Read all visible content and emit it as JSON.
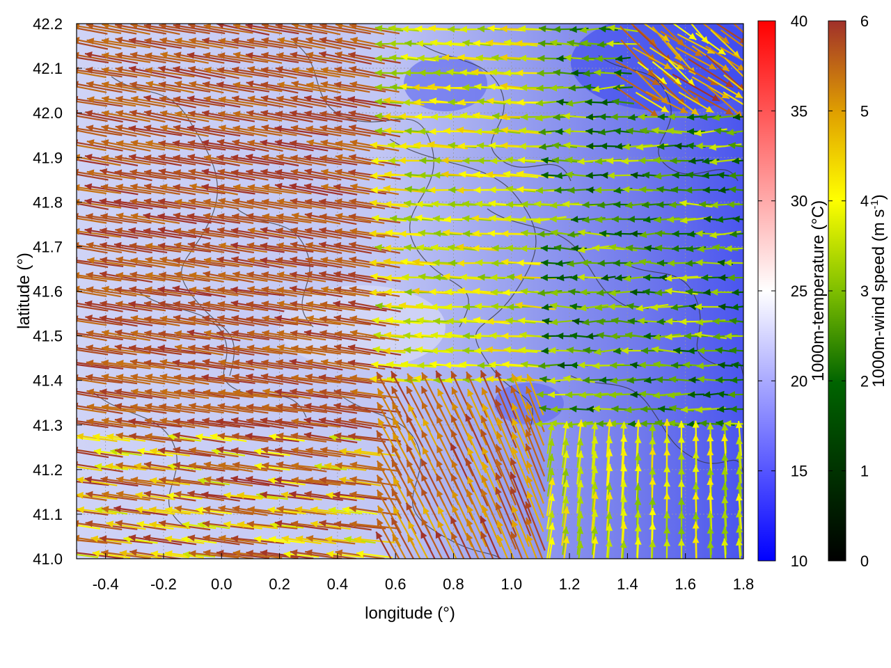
{
  "chart_data": {
    "type": "vector-field",
    "xlabel": "longitude (°)",
    "ylabel": "latitude (°)",
    "xlim": [
      -0.5,
      1.8
    ],
    "ylim": [
      41.0,
      42.2
    ],
    "xticks": [
      "-0.4",
      "-0.2",
      "0.0",
      "0.2",
      "0.4",
      "0.6",
      "0.8",
      "1.0",
      "1.2",
      "1.4",
      "1.6",
      "1.8"
    ],
    "yticks": [
      "41.0",
      "41.1",
      "41.2",
      "41.3",
      "41.4",
      "41.5",
      "41.6",
      "41.7",
      "41.8",
      "41.9",
      "42.0",
      "42.1",
      "42.2"
    ],
    "grid": true,
    "temperature_colorbar": {
      "label": "1000m-temperature (°C)",
      "range": [
        10,
        40
      ],
      "ticks": [
        "10",
        "15",
        "20",
        "25",
        "30",
        "35",
        "40"
      ],
      "colors": [
        "#0000ff",
        "#ffffff",
        "#ff0000"
      ]
    },
    "wind_colorbar": {
      "label_main": "1000m-wind speed (m s",
      "label_sup": "-1",
      "label_close": ")",
      "range": [
        0,
        6
      ],
      "ticks": [
        "0",
        "1",
        "2",
        "3",
        "4",
        "5",
        "6"
      ],
      "colors": [
        "#000000",
        "#006400",
        "#7fbf00",
        "#ffff00",
        "#e0a000",
        "#a0302a"
      ]
    },
    "temperature_field_description_regions": [
      {
        "lon_range": [
          -0.5,
          0.6
        ],
        "lat_range": [
          41.0,
          42.2
        ],
        "temperature": 21
      },
      {
        "lon_range": [
          0.6,
          1.3
        ],
        "lat_range": [
          41.0,
          42.2
        ],
        "temperature": 18
      },
      {
        "lon_range": [
          1.3,
          1.8
        ],
        "lat_range": [
          41.0,
          42.2
        ],
        "temperature": 15
      }
    ]
  }
}
